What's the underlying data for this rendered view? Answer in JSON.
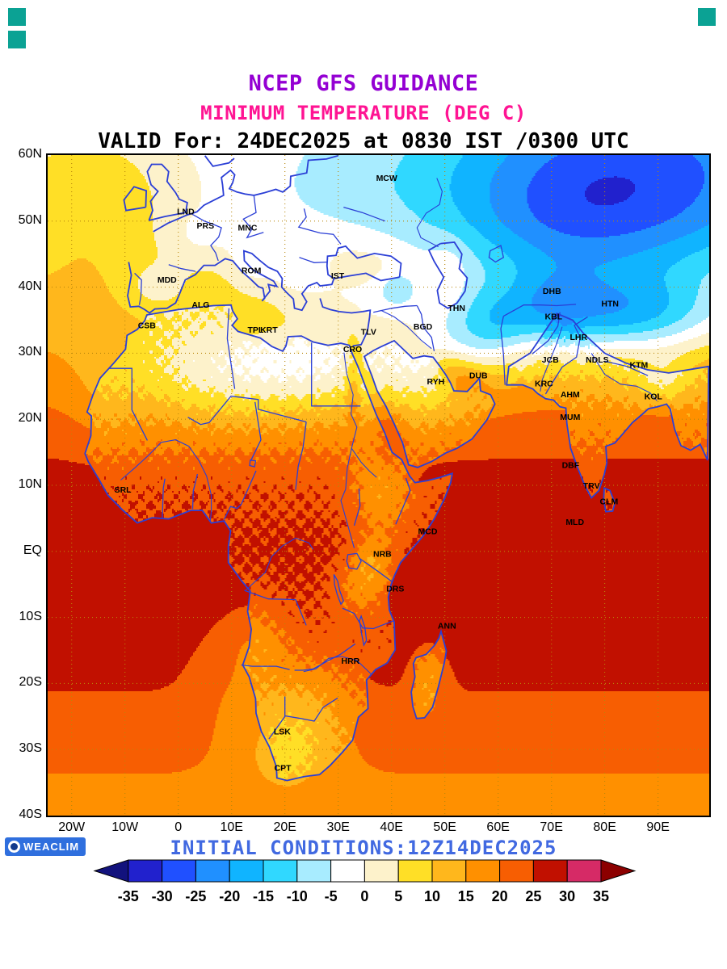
{
  "decor": {
    "corner_square_color": "#0ba294",
    "logo_bg": "#2f6fde"
  },
  "titles": {
    "line1": "NCEP GFS GUIDANCE",
    "line2": "MINIMUM TEMPERATURE (DEG C)",
    "line3": "VALID For: 24DEC2025 at 0830 IST /0300 UTC",
    "line1_color": "#9400d3",
    "line2_color": "#ff1493",
    "line3_color": "#000000"
  },
  "footer": {
    "initial_conditions": "INITIAL CONDITIONS:12Z14DEC2025",
    "initial_conditions_color": "#4169e1",
    "logo_label": "WEACLIM"
  },
  "axes": {
    "lat_ticks": [
      {
        "label": "60N",
        "value": 60
      },
      {
        "label": "50N",
        "value": 50
      },
      {
        "label": "40N",
        "value": 40
      },
      {
        "label": "30N",
        "value": 30
      },
      {
        "label": "20N",
        "value": 20
      },
      {
        "label": "10N",
        "value": 10
      },
      {
        "label": "EQ",
        "value": 0
      },
      {
        "label": "10S",
        "value": -10
      },
      {
        "label": "20S",
        "value": -20
      },
      {
        "label": "30S",
        "value": -30
      },
      {
        "label": "40S",
        "value": -40
      }
    ],
    "lon_ticks": [
      {
        "label": "20W",
        "value": -20
      },
      {
        "label": "10W",
        "value": -10
      },
      {
        "label": "0",
        "value": 0
      },
      {
        "label": "10E",
        "value": 10
      },
      {
        "label": "20E",
        "value": 20
      },
      {
        "label": "30E",
        "value": 30
      },
      {
        "label": "40E",
        "value": 40
      },
      {
        "label": "50E",
        "value": 50
      },
      {
        "label": "60E",
        "value": 60
      },
      {
        "label": "70E",
        "value": 70
      },
      {
        "label": "80E",
        "value": 80
      },
      {
        "label": "90E",
        "value": 90
      }
    ]
  },
  "cities": [
    {
      "label": "MCW",
      "lon": 39.1,
      "lat": 56.1
    },
    {
      "label": "LND",
      "lon": 1.4,
      "lat": 51.0
    },
    {
      "label": "PRS",
      "lon": 5.1,
      "lat": 48.9
    },
    {
      "label": "MNC",
      "lon": 13.0,
      "lat": 48.6
    },
    {
      "label": "ROM",
      "lon": 13.7,
      "lat": 42.1
    },
    {
      "label": "IST",
      "lon": 29.9,
      "lat": 41.3
    },
    {
      "label": "MDD",
      "lon": -2.1,
      "lat": 40.7
    },
    {
      "label": "ALG",
      "lon": 4.2,
      "lat": 36.9
    },
    {
      "label": "THN",
      "lon": 52.2,
      "lat": 36.4
    },
    {
      "label": "CSB",
      "lon": -5.9,
      "lat": 33.8
    },
    {
      "label": "TPL",
      "lon": 14.5,
      "lat": 33.1
    },
    {
      "label": "KRT",
      "lon": 17.0,
      "lat": 33.1
    },
    {
      "label": "TLV",
      "lon": 35.7,
      "lat": 32.8
    },
    {
      "label": "BGD",
      "lon": 45.9,
      "lat": 33.6
    },
    {
      "label": "DHB",
      "lon": 70.1,
      "lat": 39.0
    },
    {
      "label": "HTN",
      "lon": 81.0,
      "lat": 37.1
    },
    {
      "label": "KBL",
      "lon": 70.4,
      "lat": 35.1
    },
    {
      "label": "LHR",
      "lon": 75.1,
      "lat": 32.0
    },
    {
      "label": "CRO",
      "lon": 32.7,
      "lat": 30.2
    },
    {
      "label": "JCB",
      "lon": 69.8,
      "lat": 28.6
    },
    {
      "label": "NDLS",
      "lon": 78.6,
      "lat": 28.6
    },
    {
      "label": "KTM",
      "lon": 86.4,
      "lat": 27.8
    },
    {
      "label": "KRC",
      "lon": 68.6,
      "lat": 25.0
    },
    {
      "label": "RYH",
      "lon": 48.3,
      "lat": 25.3
    },
    {
      "label": "DUB",
      "lon": 56.3,
      "lat": 26.2
    },
    {
      "label": "AHM",
      "lon": 73.5,
      "lat": 23.3
    },
    {
      "label": "KOL",
      "lon": 89.1,
      "lat": 23.0
    },
    {
      "label": "MUM",
      "lon": 73.5,
      "lat": 19.9
    },
    {
      "label": "DBF",
      "lon": 73.6,
      "lat": 12.6
    },
    {
      "label": "TRV",
      "lon": 77.5,
      "lat": 9.5
    },
    {
      "label": "CLM",
      "lon": 80.8,
      "lat": 7.1
    },
    {
      "label": "MLD",
      "lon": 74.4,
      "lat": 4.0
    },
    {
      "label": "SRL",
      "lon": -10.4,
      "lat": 8.9
    },
    {
      "label": "MCD",
      "lon": 46.8,
      "lat": 2.6
    },
    {
      "label": "NRB",
      "lon": 38.3,
      "lat": -0.8
    },
    {
      "label": "DRS",
      "lon": 40.7,
      "lat": -6.1
    },
    {
      "label": "ANN",
      "lon": 50.4,
      "lat": -11.7
    },
    {
      "label": "HRR",
      "lon": 32.3,
      "lat": -17.0
    },
    {
      "label": "LSK",
      "lon": 19.5,
      "lat": -27.7
    },
    {
      "label": "CPT",
      "lon": 19.6,
      "lat": -33.2
    }
  ],
  "chart_data": {
    "type": "heatmap",
    "title": "NCEP GFS GUIDANCE - MINIMUM TEMPERATURE (DEG C)",
    "valid": "24DEC2025 at 0830 IST /0300 UTC",
    "init": "12Z14DEC2025",
    "units": "DEG C",
    "lon_range": [
      -24.5,
      99.6
    ],
    "lat_range": [
      -40,
      60
    ],
    "grid_step_deg": 10,
    "map_line_color": "#2b3fd6",
    "grid_line_color": "#b8860b",
    "colorbar": {
      "tick_labels": [
        "-35",
        "-30",
        "-25",
        "-20",
        "-15",
        "-10",
        "-5",
        "0",
        "5",
        "10",
        "15",
        "20",
        "25",
        "30",
        "35"
      ],
      "colors": [
        "#12127d",
        "#2121cd",
        "#2050ff",
        "#2090ff",
        "#10b4ff",
        "#30d8ff",
        "#a8ecff",
        "#ffffff",
        "#fdf2cb",
        "#ffdf26",
        "#ffb71c",
        "#ff9000",
        "#f75e02",
        "#c11000",
        "#d62a66",
        "#8c0000"
      ],
      "border_color": "#000000"
    },
    "field_approximation": {
      "base_profile": [
        [
          60,
          -2
        ],
        [
          50,
          2
        ],
        [
          40,
          8
        ],
        [
          30,
          14
        ],
        [
          20,
          20
        ],
        [
          10,
          26
        ],
        [
          0,
          28
        ],
        [
          -10,
          27
        ],
        [
          -20,
          24
        ],
        [
          -30,
          20
        ],
        [
          -40,
          16
        ]
      ],
      "anomalies": [
        [
          88,
          55,
          26,
          12,
          -27
        ],
        [
          70,
          48,
          16,
          9,
          -10
        ],
        [
          84,
          35.5,
          13,
          4.2,
          -20
        ],
        [
          70,
          37,
          6,
          4,
          -10
        ],
        [
          60,
          34,
          5,
          4,
          -8
        ],
        [
          35,
          54,
          16,
          7,
          -5
        ],
        [
          14,
          50,
          14,
          6,
          -3
        ],
        [
          8,
          27,
          13,
          5.5,
          -11
        ],
        [
          26,
          28,
          10,
          5,
          -9
        ],
        [
          44,
          26,
          8,
          5,
          -9
        ],
        [
          54,
          33,
          7,
          5,
          -12
        ],
        [
          36,
          38,
          8,
          4,
          -8
        ],
        [
          41,
          39.5,
          2.5,
          2,
          -6
        ],
        [
          -4,
          40,
          4,
          2.5,
          -7
        ],
        [
          3,
          47,
          5,
          3,
          -4
        ],
        [
          13,
          43,
          3,
          3,
          -5
        ],
        [
          22,
          42,
          5,
          3.5,
          -7
        ],
        [
          38.5,
          9,
          4,
          4.5,
          -9
        ],
        [
          36.8,
          -1.5,
          3,
          3,
          -8
        ],
        [
          34,
          -6,
          3.5,
          3.5,
          -6
        ],
        [
          22,
          -25,
          7,
          6,
          -8
        ],
        [
          20,
          -31.5,
          5,
          3.5,
          -5
        ],
        [
          15,
          -13,
          4,
          4,
          -5
        ],
        [
          47,
          -20,
          2.5,
          4.5,
          -6
        ],
        [
          91,
          26,
          4,
          2.5,
          -8
        ],
        [
          9,
          -18,
          5,
          8,
          -4
        ],
        [
          -14,
          23,
          4,
          6,
          -3
        ],
        [
          -17,
          55,
          11,
          8,
          8
        ],
        [
          39.5,
          17,
          2.5,
          5,
          5
        ],
        [
          51,
          27.5,
          2.5,
          2,
          7
        ],
        [
          55,
          25.8,
          2.5,
          2,
          7
        ],
        [
          32.8,
          25.5,
          1.0,
          4.5,
          8
        ],
        [
          34,
          43,
          4,
          1.8,
          4
        ],
        [
          51,
          42,
          2.5,
          4,
          4
        ]
      ],
      "land_adjust": -2,
      "sea_adjust": 1.5,
      "noise_amp": 1.7
    }
  }
}
